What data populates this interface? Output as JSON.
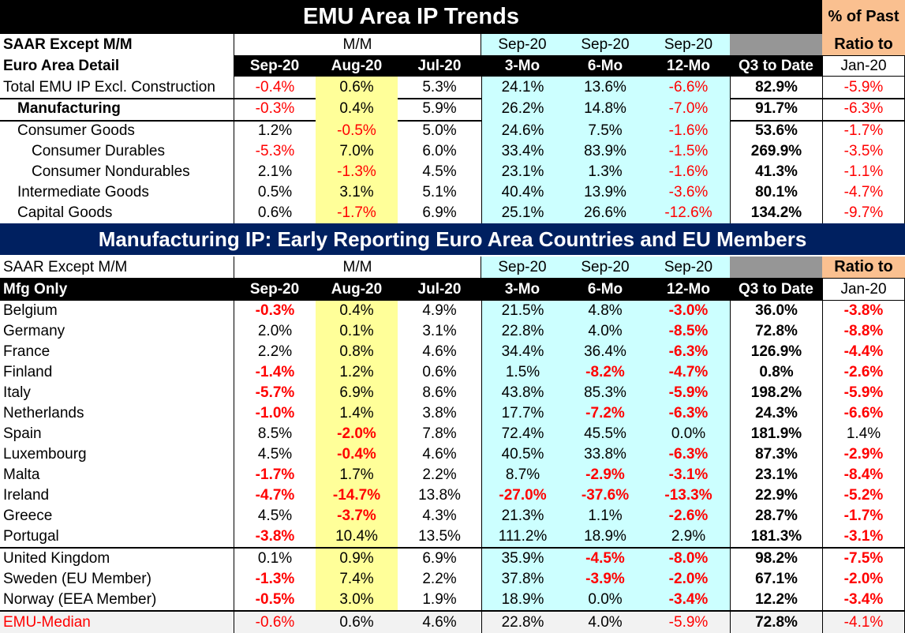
{
  "title": "EMU Area IP Trends",
  "past_pct_header": "% of Past",
  "ratio_label": "Ratio to",
  "jan_label": "Jan-20",
  "section1": {
    "header_row1": {
      "label": "SAAR Except M/M",
      "mm": "M/M",
      "sep3": "Sep-20",
      "sep6": "Sep-20",
      "sep12": "Sep-20"
    },
    "header_row2": {
      "label": "Euro Area Detail",
      "c1": "Sep-20",
      "c2": "Aug-20",
      "c3": "Jul-20",
      "c4": "3-Mo",
      "c5": "6-Mo",
      "c6": "12-Mo",
      "c7": "Q3 to Date"
    },
    "rows": [
      {
        "label": "Total EMU IP Excl. Construction",
        "vals": [
          "-0.4%",
          "0.6%",
          "5.3%",
          "24.1%",
          "13.6%",
          "-6.6%",
          "82.9%",
          "-5.9%"
        ]
      },
      {
        "label": "Manufacturing",
        "vals": [
          "-0.3%",
          "0.4%",
          "5.9%",
          "26.2%",
          "14.8%",
          "-7.0%",
          "91.7%",
          "-6.3%"
        ]
      },
      {
        "label": "Consumer Goods",
        "vals": [
          "1.2%",
          "-0.5%",
          "5.0%",
          "24.6%",
          "7.5%",
          "-1.6%",
          "53.6%",
          "-1.7%"
        ]
      },
      {
        "label": "Consumer Durables",
        "vals": [
          "-5.3%",
          "7.0%",
          "6.0%",
          "33.4%",
          "83.9%",
          "-1.5%",
          "269.9%",
          "-3.5%"
        ]
      },
      {
        "label": "Consumer Nondurables",
        "vals": [
          "2.1%",
          "-1.3%",
          "4.5%",
          "23.1%",
          "1.3%",
          "-1.6%",
          "41.3%",
          "-1.1%"
        ]
      },
      {
        "label": "Intermediate Goods",
        "vals": [
          "0.5%",
          "3.1%",
          "5.1%",
          "40.4%",
          "13.9%",
          "-3.6%",
          "80.1%",
          "-4.7%"
        ]
      },
      {
        "label": "Capital Goods",
        "vals": [
          "0.6%",
          "-1.7%",
          "6.9%",
          "25.1%",
          "26.6%",
          "-12.6%",
          "134.2%",
          "-9.7%"
        ]
      }
    ]
  },
  "section2": {
    "banner": "Manufacturing IP: Early Reporting Euro Area Countries and EU Members",
    "header_row1": {
      "label": "SAAR Except M/M",
      "mm": "M/M",
      "sep3": "Sep-20",
      "sep6": "Sep-20",
      "sep12": "Sep-20"
    },
    "header_row2": {
      "label": "Mfg Only",
      "c1": "Sep-20",
      "c2": "Aug-20",
      "c3": "Jul-20",
      "c4": "3-Mo",
      "c5": "6-Mo",
      "c6": "12-Mo",
      "c7": "Q3 to Date"
    },
    "rows": [
      {
        "label": "Belgium",
        "vals": [
          "-0.3%",
          "0.4%",
          "4.9%",
          "21.5%",
          "4.8%",
          "-3.0%",
          "36.0%",
          "-3.8%"
        ]
      },
      {
        "label": "Germany",
        "vals": [
          "2.0%",
          "0.1%",
          "3.1%",
          "22.8%",
          "4.0%",
          "-8.5%",
          "72.8%",
          "-8.8%"
        ]
      },
      {
        "label": "France",
        "vals": [
          "2.2%",
          "0.8%",
          "4.6%",
          "34.4%",
          "36.4%",
          "-6.3%",
          "126.9%",
          "-4.4%"
        ]
      },
      {
        "label": "Finland",
        "vals": [
          "-1.4%",
          "1.2%",
          "0.6%",
          "1.5%",
          "-8.2%",
          "-4.7%",
          "0.8%",
          "-2.6%"
        ]
      },
      {
        "label": "Italy",
        "vals": [
          "-5.7%",
          "6.9%",
          "8.6%",
          "43.8%",
          "85.3%",
          "-5.9%",
          "198.2%",
          "-5.9%"
        ]
      },
      {
        "label": "Netherlands",
        "vals": [
          "-1.0%",
          "1.4%",
          "3.8%",
          "17.7%",
          "-7.2%",
          "-6.3%",
          "24.3%",
          "-6.6%"
        ]
      },
      {
        "label": "Spain",
        "vals": [
          "8.5%",
          "-2.0%",
          "7.8%",
          "72.4%",
          "45.5%",
          "0.0%",
          "181.9%",
          "1.4%"
        ]
      },
      {
        "label": "Luxembourg",
        "vals": [
          "4.5%",
          "-0.4%",
          "4.6%",
          "40.5%",
          "33.8%",
          "-6.3%",
          "87.3%",
          "-2.9%"
        ]
      },
      {
        "label": "Malta",
        "vals": [
          "-1.7%",
          "1.7%",
          "2.2%",
          "8.7%",
          "-2.9%",
          "-3.1%",
          "23.1%",
          "-8.4%"
        ]
      },
      {
        "label": "Ireland",
        "vals": [
          "-4.7%",
          "-14.7%",
          "13.8%",
          "-27.0%",
          "-37.6%",
          "-13.3%",
          "22.9%",
          "-5.2%"
        ]
      },
      {
        "label": "Greece",
        "vals": [
          "4.5%",
          "-3.7%",
          "4.3%",
          "21.3%",
          "1.1%",
          "-2.6%",
          "28.7%",
          "-1.7%"
        ]
      },
      {
        "label": "Portugal",
        "vals": [
          "-3.8%",
          "10.4%",
          "13.5%",
          "111.2%",
          "18.9%",
          "2.9%",
          "181.3%",
          "-3.1%"
        ]
      },
      {
        "label": "United Kingdom",
        "vals": [
          "0.1%",
          "0.9%",
          "6.9%",
          "35.9%",
          "-4.5%",
          "-8.0%",
          "98.2%",
          "-7.5%"
        ]
      },
      {
        "label": "Sweden (EU Member)",
        "vals": [
          "-1.3%",
          "7.4%",
          "2.2%",
          "37.8%",
          "-3.9%",
          "-2.0%",
          "67.1%",
          "-2.0%"
        ]
      },
      {
        "label": "Norway (EEA Member)",
        "vals": [
          "-0.5%",
          "3.0%",
          "1.9%",
          "18.9%",
          "0.0%",
          "-3.4%",
          "12.2%",
          "-3.4%"
        ]
      },
      {
        "label": "EMU-Median",
        "vals": [
          "-0.6%",
          "0.6%",
          "4.6%",
          "22.8%",
          "4.0%",
          "-5.9%",
          "72.8%",
          "-4.1%"
        ]
      }
    ]
  }
}
